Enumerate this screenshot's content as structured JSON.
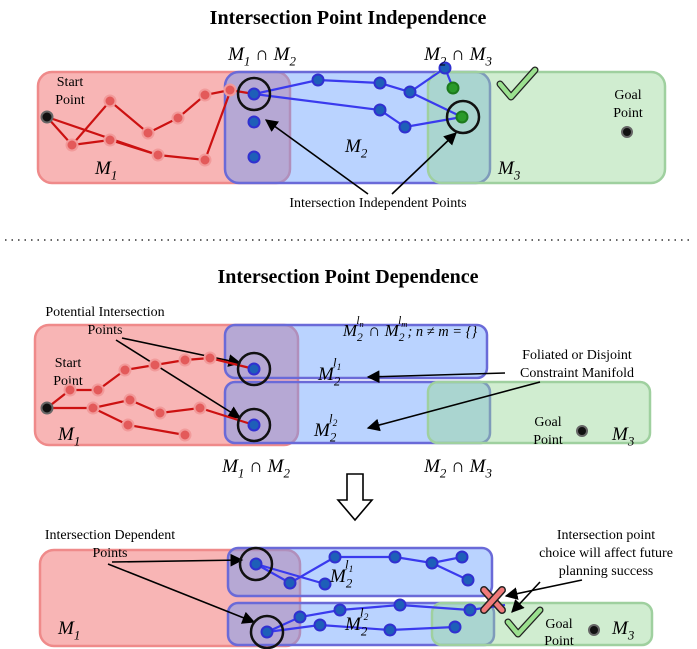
{
  "top": {
    "title": "Intersection Point Independence",
    "intersections": [
      {
        "left": {
          "base": "M",
          "sub": "1"
        },
        "op": "∩",
        "right": {
          "base": "M",
          "sub": "2"
        }
      },
      {
        "left": {
          "base": "M",
          "sub": "2"
        },
        "op": "∩",
        "right": {
          "base": "M",
          "sub": "3"
        }
      }
    ],
    "start_label": [
      "Start",
      "Point"
    ],
    "goal_label": [
      "Goal",
      "Point"
    ],
    "manifolds": [
      {
        "base": "M",
        "sub": "1"
      },
      {
        "base": "M",
        "sub": "2"
      },
      {
        "base": "M",
        "sub": "3"
      }
    ],
    "annotation": "Intersection Independent Points"
  },
  "middle": {
    "title": "Intersection Point Dependence",
    "annotation_left": [
      "Potential Intersection",
      "Points"
    ],
    "formula": {
      "left": {
        "base": "M",
        "sub": "2",
        "sup": "l",
        "sup_sub": "n"
      },
      "op": "∩",
      "right": {
        "base": "M",
        "sub": "2",
        "sup": "l",
        "sup_sub": "m"
      },
      "rest": "; n ≠ m = {}"
    },
    "annotation_right": [
      "Foliated or Disjoint",
      "Constraint Manifold"
    ],
    "start_label": [
      "Start",
      "Point"
    ],
    "goal_label": [
      "Goal",
      "Point"
    ],
    "manifolds": [
      {
        "base": "M",
        "sub": "1"
      },
      {
        "base": "M",
        "sub": "2",
        "sup": "l",
        "sup_sub": "1"
      },
      {
        "base": "M",
        "sub": "2",
        "sup": "l",
        "sup_sub": "2"
      },
      {
        "base": "M",
        "sub": "3"
      }
    ],
    "intersections": [
      {
        "left": {
          "base": "M",
          "sub": "1"
        },
        "op": "∩",
        "right": {
          "base": "M",
          "sub": "2"
        }
      },
      {
        "left": {
          "base": "M",
          "sub": "2"
        },
        "op": "∩",
        "right": {
          "base": "M",
          "sub": "3"
        }
      }
    ]
  },
  "bottom": {
    "annotation_left": [
      "Intersection Dependent",
      "Points"
    ],
    "annotation_right": [
      "Intersection point",
      "choice will affect future",
      "planning success"
    ],
    "goal_label": [
      "Goal",
      "Point"
    ],
    "manifolds": [
      {
        "base": "M",
        "sub": "1"
      },
      {
        "base": "M",
        "sub": "2",
        "sup": "l",
        "sup_sub": "1"
      },
      {
        "base": "M",
        "sub": "2",
        "sup": "l",
        "sup_sub": "2"
      },
      {
        "base": "M",
        "sub": "3"
      }
    ]
  }
}
